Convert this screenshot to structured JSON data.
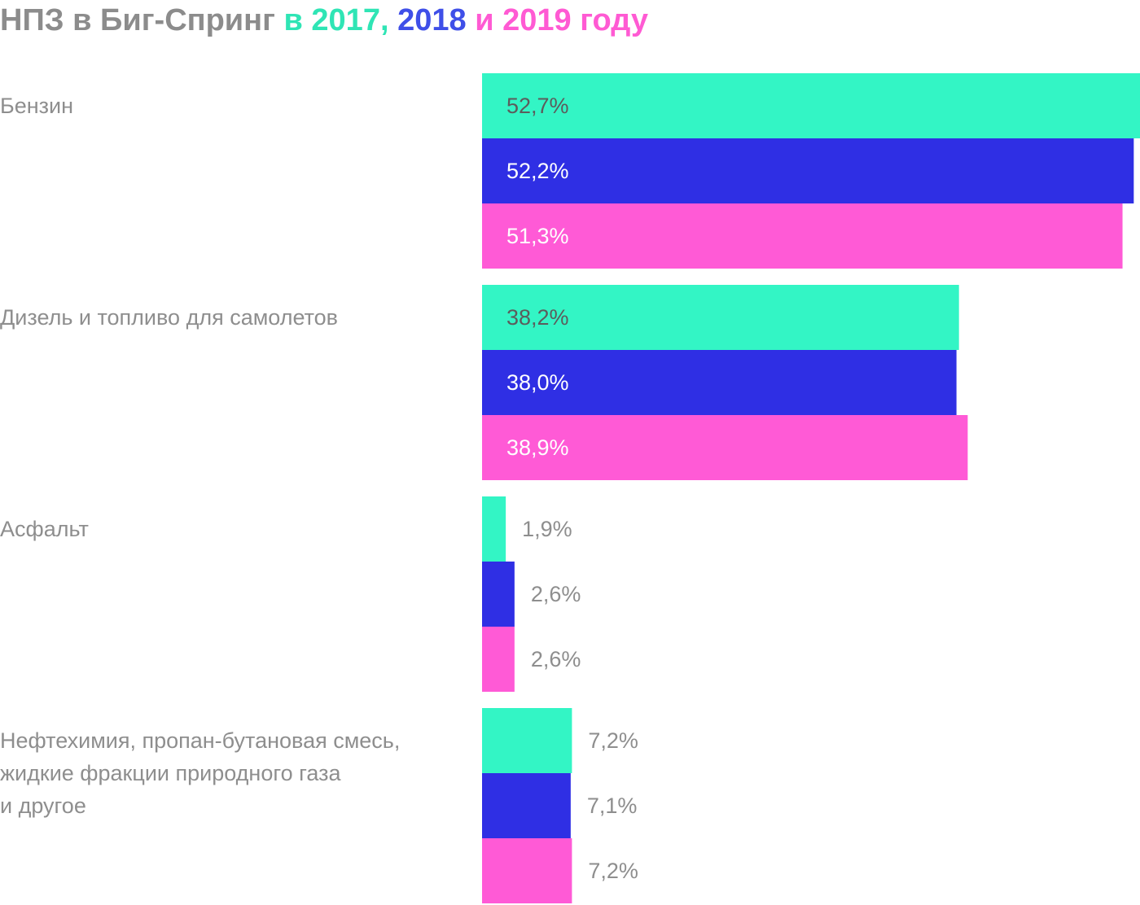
{
  "title": {
    "base": "НПЗ в Биг-Спринг",
    "y2017": "в 2017,",
    "y2018": "2018",
    "y2019": "и 2019 году"
  },
  "colors": {
    "2017": "#33f5c5",
    "2018": "#2f2fe4",
    "2019": "#ff5ad6",
    "label_gray": "#8e8e8e",
    "value_on_mint": "#5c5c5c",
    "value_on_dark": "#ffffff"
  },
  "chart_data": {
    "type": "bar",
    "orientation": "horizontal",
    "categories": [
      [
        "Бензин"
      ],
      [
        "Дизель и топливо для самолетов"
      ],
      [
        "Асфальт"
      ],
      [
        "Нефтехимия, пропан-бутановая смесь,",
        "жидкие фракции природного газа",
        "и другое"
      ]
    ],
    "series": [
      {
        "name": "2017",
        "values": [
          52.7,
          38.2,
          1.9,
          7.2
        ],
        "labels": [
          "52,7%",
          "38,2%",
          "1,9%",
          "7,2%"
        ]
      },
      {
        "name": "2018",
        "values": [
          52.2,
          38.0,
          2.6,
          7.1
        ],
        "labels": [
          "52,2%",
          "38,0%",
          "2,6%",
          "7,1%"
        ]
      },
      {
        "name": "2019",
        "values": [
          51.3,
          38.9,
          2.6,
          7.2
        ],
        "labels": [
          "51,3%",
          "38,9%",
          "2,6%",
          "7,2%"
        ]
      }
    ],
    "xlim": [
      0,
      52.7
    ],
    "grid": false,
    "legend": "none"
  }
}
